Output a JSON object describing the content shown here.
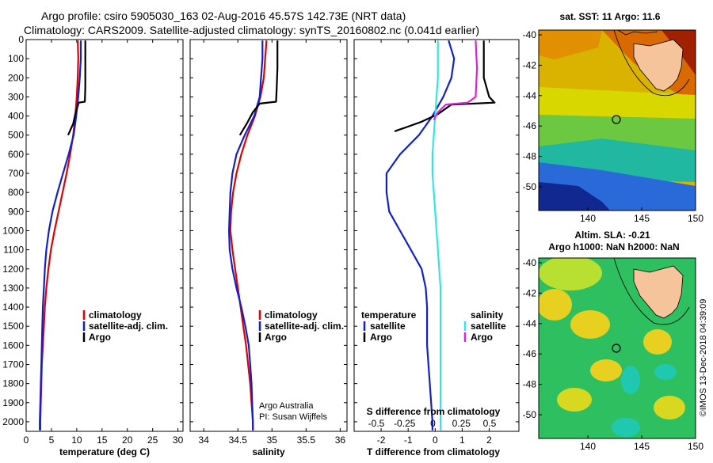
{
  "header": {
    "line1": "Argo profile: csiro 5905030_163 02-Aug-2016 45.57S 142.73E (NRT data)",
    "line2": "Climatology: CARS2009. Satellite-adjusted climatology: synTS_20160802.nc (0.041d earlier)"
  },
  "colors": {
    "climatology": "#e00000",
    "satellite": "#1020d0",
    "argo": "#000000",
    "salinity_sat": "#30e6e6",
    "salinity_argo": "#e020e0"
  },
  "panels": {
    "temperature": {
      "xlabel": "temperature (deg C)",
      "legend": [
        "climatology",
        "satellite-adj. clim.",
        "Argo"
      ]
    },
    "salinity": {
      "xlabel": "salinity",
      "legend": [
        "climatology",
        "satellite-adj. clim.",
        "Argo"
      ],
      "credit1": "Argo Australia",
      "credit2": "PI: Susan Wijffels"
    },
    "difference": {
      "xlabel": "T difference from climatology",
      "top_axis_label": "S difference from climatology",
      "legend_temperature_title": "temperature",
      "legend_salinity_title": "salinity",
      "legend_left": [
        "satellite",
        "Argo"
      ],
      "legend_right": [
        "satellite",
        "Argo"
      ]
    }
  },
  "maps": {
    "sst_title": "sat. SST: 11 Argo: 11.6",
    "sla_title1": "Altim. SLA: -0.21",
    "sla_title2": "Argo h1000: NaN h2000: NaN",
    "x_ticks": [
      "140",
      "145",
      "150"
    ],
    "y_ticks": [
      "-40",
      "-42",
      "-44",
      "-46",
      "-48",
      "-50"
    ]
  },
  "stamp": "©IMOS 13-Dec-2018 04:39:09",
  "chart_data": [
    {
      "type": "line",
      "title": "",
      "xlabel": "temperature (deg C)",
      "ylabel": "",
      "xlim": [
        0,
        31
      ],
      "ylim": [
        2050,
        0
      ],
      "x_ticks": [
        0,
        5,
        10,
        15,
        20,
        25,
        30
      ],
      "y_ticks": [
        0,
        100,
        200,
        300,
        400,
        500,
        600,
        700,
        800,
        900,
        1000,
        1100,
        1200,
        1300,
        1400,
        1500,
        1600,
        1700,
        1800,
        1900,
        2000
      ],
      "series": [
        {
          "name": "climatology",
          "points": [
            [
              10.2,
              5
            ],
            [
              10.3,
              100
            ],
            [
              10.2,
              200
            ],
            [
              10.0,
              300
            ],
            [
              9.7,
              400
            ],
            [
              9.3,
              500
            ],
            [
              8.7,
              600
            ],
            [
              8.0,
              700
            ],
            [
              7.2,
              800
            ],
            [
              6.4,
              900
            ],
            [
              5.6,
              1000
            ],
            [
              4.9,
              1100
            ],
            [
              4.4,
              1200
            ],
            [
              4.0,
              1300
            ],
            [
              3.7,
              1400
            ],
            [
              3.5,
              1500
            ],
            [
              3.3,
              1600
            ],
            [
              3.1,
              1700
            ],
            [
              3.0,
              1800
            ],
            [
              2.9,
              1900
            ],
            [
              2.8,
              2000
            ],
            [
              2.8,
              2045
            ]
          ]
        },
        {
          "name": "satellite-adj. clim.",
          "points": [
            [
              10.8,
              5
            ],
            [
              10.8,
              100
            ],
            [
              10.6,
              200
            ],
            [
              10.3,
              300
            ],
            [
              9.9,
              400
            ],
            [
              9.4,
              500
            ],
            [
              8.4,
              600
            ],
            [
              7.3,
              700
            ],
            [
              6.2,
              800
            ],
            [
              5.2,
              900
            ],
            [
              4.5,
              1000
            ],
            [
              4.0,
              1100
            ],
            [
              3.7,
              1200
            ],
            [
              3.5,
              1300
            ],
            [
              3.3,
              1400
            ],
            [
              3.2,
              1500
            ],
            [
              3.1,
              1600
            ],
            [
              3.0,
              1700
            ],
            [
              2.9,
              1800
            ],
            [
              2.8,
              1900
            ],
            [
              2.7,
              2000
            ],
            [
              2.7,
              2045
            ]
          ]
        },
        {
          "name": "Argo",
          "points": [
            [
              11.7,
              5
            ],
            [
              11.7,
              150
            ],
            [
              11.7,
              250
            ],
            [
              11.6,
              325
            ],
            [
              10.4,
              330
            ],
            [
              9.8,
              380
            ],
            [
              9.3,
              440
            ],
            [
              8.3,
              500
            ]
          ]
        }
      ]
    },
    {
      "type": "line",
      "title": "",
      "xlabel": "salinity",
      "ylabel": "",
      "xlim": [
        33.8,
        36.1
      ],
      "ylim": [
        2050,
        0
      ],
      "x_ticks": [
        34,
        34.5,
        35,
        35.5,
        36
      ],
      "series": [
        {
          "name": "climatology",
          "points": [
            [
              34.92,
              5
            ],
            [
              34.9,
              100
            ],
            [
              34.88,
              200
            ],
            [
              34.83,
              300
            ],
            [
              34.75,
              400
            ],
            [
              34.64,
              500
            ],
            [
              34.55,
              600
            ],
            [
              34.48,
              700
            ],
            [
              34.43,
              800
            ],
            [
              34.4,
              900
            ],
            [
              34.39,
              1000
            ],
            [
              34.42,
              1100
            ],
            [
              34.46,
              1200
            ],
            [
              34.5,
              1300
            ],
            [
              34.54,
              1400
            ],
            [
              34.58,
              1500
            ],
            [
              34.62,
              1600
            ],
            [
              34.65,
              1700
            ],
            [
              34.68,
              1800
            ],
            [
              34.7,
              1900
            ],
            [
              34.72,
              2000
            ],
            [
              34.72,
              2045
            ]
          ]
        },
        {
          "name": "satellite-adj. clim.",
          "points": [
            [
              34.86,
              5
            ],
            [
              34.86,
              100
            ],
            [
              34.84,
              200
            ],
            [
              34.82,
              300
            ],
            [
              34.74,
              400
            ],
            [
              34.6,
              500
            ],
            [
              34.48,
              600
            ],
            [
              34.42,
              700
            ],
            [
              34.39,
              800
            ],
            [
              34.38,
              900
            ],
            [
              34.37,
              1000
            ],
            [
              34.38,
              1100
            ],
            [
              34.42,
              1200
            ],
            [
              34.48,
              1300
            ],
            [
              34.55,
              1400
            ],
            [
              34.61,
              1500
            ],
            [
              34.66,
              1600
            ],
            [
              34.68,
              1700
            ],
            [
              34.7,
              1800
            ],
            [
              34.71,
              1900
            ],
            [
              34.72,
              2000
            ],
            [
              34.72,
              2045
            ]
          ]
        },
        {
          "name": "Argo",
          "points": [
            [
              35.08,
              5
            ],
            [
              35.08,
              150
            ],
            [
              35.07,
              250
            ],
            [
              35.06,
              325
            ],
            [
              34.82,
              335
            ],
            [
              34.72,
              380
            ],
            [
              34.63,
              440
            ],
            [
              34.53,
              500
            ]
          ]
        }
      ]
    },
    {
      "type": "line",
      "title": "",
      "xlabel": "T difference from climatology",
      "ylabel": "",
      "xlim": [
        -3,
        3.1
      ],
      "ylim": [
        2050,
        0
      ],
      "x_ticks": [
        -2,
        -1,
        0,
        1,
        2
      ],
      "top_axis": {
        "label": "S difference from climatology",
        "ticks": [
          "-0.5",
          "-0.25",
          "0",
          "0.25",
          "0.5"
        ]
      },
      "series": [
        {
          "name": "temperature satellite",
          "points": [
            [
              0.5,
              5
            ],
            [
              0.7,
              100
            ],
            [
              0.6,
              200
            ],
            [
              0.3,
              300
            ],
            [
              0.1,
              350
            ],
            [
              -0.1,
              400
            ],
            [
              -0.6,
              500
            ],
            [
              -1.3,
              600
            ],
            [
              -1.8,
              700
            ],
            [
              -1.8,
              800
            ],
            [
              -1.7,
              900
            ],
            [
              -1.3,
              1000
            ],
            [
              -0.9,
              1100
            ],
            [
              -0.5,
              1200
            ],
            [
              -0.35,
              1300
            ],
            [
              -0.3,
              1400
            ],
            [
              -0.3,
              1500
            ],
            [
              -0.3,
              1600
            ],
            [
              -0.25,
              1700
            ],
            [
              -0.2,
              1800
            ],
            [
              -0.15,
              1900
            ],
            [
              -0.1,
              2000
            ],
            [
              -0.1,
              2045
            ]
          ]
        },
        {
          "name": "temperature Argo",
          "points": [
            [
              1.8,
              5
            ],
            [
              1.8,
              200
            ],
            [
              2.0,
              300
            ],
            [
              2.2,
              330
            ],
            [
              0.6,
              340
            ],
            [
              0.1,
              390
            ],
            [
              -0.5,
              430
            ],
            [
              -1.1,
              460
            ],
            [
              -1.5,
              480
            ]
          ]
        },
        {
          "name": "salinity satellite",
          "points": [
            [
              0.1,
              5
            ],
            [
              0.1,
              200
            ],
            [
              0.05,
              300
            ],
            [
              0.0,
              400
            ],
            [
              -0.05,
              500
            ],
            [
              -0.1,
              600
            ],
            [
              -0.1,
              700
            ],
            [
              -0.05,
              800
            ],
            [
              0.0,
              900
            ],
            [
              0.05,
              1000
            ],
            [
              0.1,
              1100
            ],
            [
              0.15,
              1200
            ],
            [
              0.2,
              1300
            ],
            [
              0.2,
              1400
            ],
            [
              0.2,
              1500
            ],
            [
              0.2,
              1600
            ],
            [
              0.2,
              1700
            ],
            [
              0.2,
              1800
            ],
            [
              0.2,
              1900
            ],
            [
              0.2,
              2000
            ],
            [
              0.2,
              2045
            ]
          ]
        },
        {
          "name": "salinity Argo",
          "points": [
            [
              1.5,
              5
            ],
            [
              1.55,
              150
            ],
            [
              1.5,
              300
            ],
            [
              1.2,
              330
            ],
            [
              0.4,
              340
            ],
            [
              0.1,
              380
            ],
            [
              -0.05,
              420
            ]
          ]
        }
      ]
    }
  ]
}
